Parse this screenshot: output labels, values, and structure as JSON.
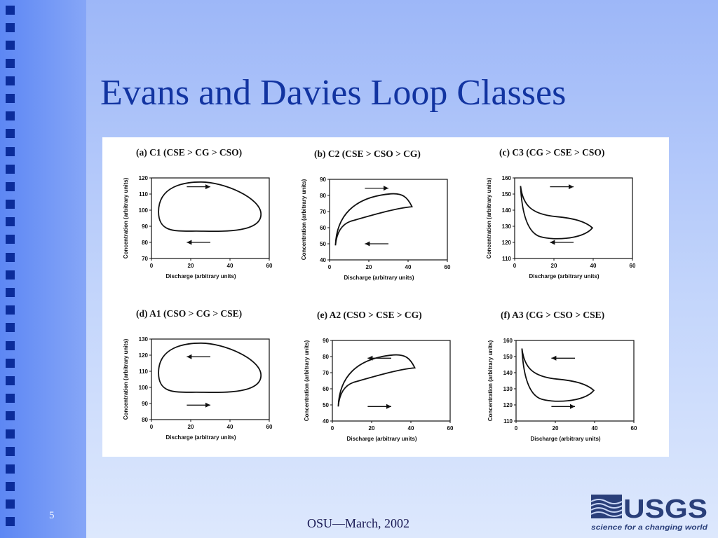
{
  "slide": {
    "number": "5",
    "title": "Evans and Davies Loop Classes",
    "footer": "OSU—March, 2002",
    "logo": {
      "text": "USGS",
      "tagline": "science for a changing world"
    },
    "colors": {
      "title": "#1234a1",
      "sidebar": "#6f96f5",
      "bullet": "#0b2c9a"
    }
  },
  "diagram": {
    "xlabel": "Discharge (arbitrary units)",
    "ylabel": "Concentration (arbitrary units)",
    "panels": [
      {
        "title": "(a) C1 (CSE > CG > CSO)",
        "xticks": [
          "0",
          "20",
          "40",
          "60"
        ],
        "yticks": [
          "70",
          "80",
          "90",
          "100",
          "110",
          "120"
        ],
        "ymin": 70,
        "ymax": 120,
        "loop": "egg",
        "arrows": [
          "right-top",
          "left-bottom"
        ]
      },
      {
        "title": "(b) C2 (CSE > CSO > CG)",
        "xticks": [
          "0",
          "20",
          "40",
          "60"
        ],
        "yticks": [
          "40",
          "50",
          "60",
          "70",
          "80",
          "90"
        ],
        "ymin": 40,
        "ymax": 90,
        "loop": "rising",
        "arrows": [
          "right-top",
          "left-bottom"
        ]
      },
      {
        "title": "(c) C3 (CG > CSE > CSO)",
        "xticks": [
          "0",
          "20",
          "40",
          "60"
        ],
        "yticks": [
          "110",
          "120",
          "130",
          "140",
          "150",
          "160"
        ],
        "ymin": 110,
        "ymax": 160,
        "loop": "falling",
        "arrows": [
          "right-top",
          "left-bottom"
        ]
      },
      {
        "title": "(d) A1 (CSO > CG > CSE)",
        "xticks": [
          "0",
          "20",
          "40",
          "60"
        ],
        "yticks": [
          "80",
          "90",
          "100",
          "110",
          "120",
          "130"
        ],
        "ymin": 80,
        "ymax": 130,
        "loop": "egg",
        "arrows": [
          "left-top",
          "right-bottom"
        ]
      },
      {
        "title": "(e) A2 (CSO > CSE > CG)",
        "xticks": [
          "0",
          "20",
          "40",
          "60"
        ],
        "yticks": [
          "40",
          "50",
          "60",
          "70",
          "80",
          "90"
        ],
        "ymin": 40,
        "ymax": 90,
        "loop": "rising",
        "arrows": [
          "left-top",
          "right-bottom"
        ]
      },
      {
        "title": "(f) A3 (CG > CSO > CSE)",
        "xticks": [
          "0",
          "20",
          "40",
          "60"
        ],
        "yticks": [
          "110",
          "120",
          "130",
          "140",
          "150",
          "160"
        ],
        "ymin": 110,
        "ymax": 160,
        "loop": "falling",
        "arrows": [
          "left-top",
          "right-bottom"
        ]
      }
    ]
  }
}
